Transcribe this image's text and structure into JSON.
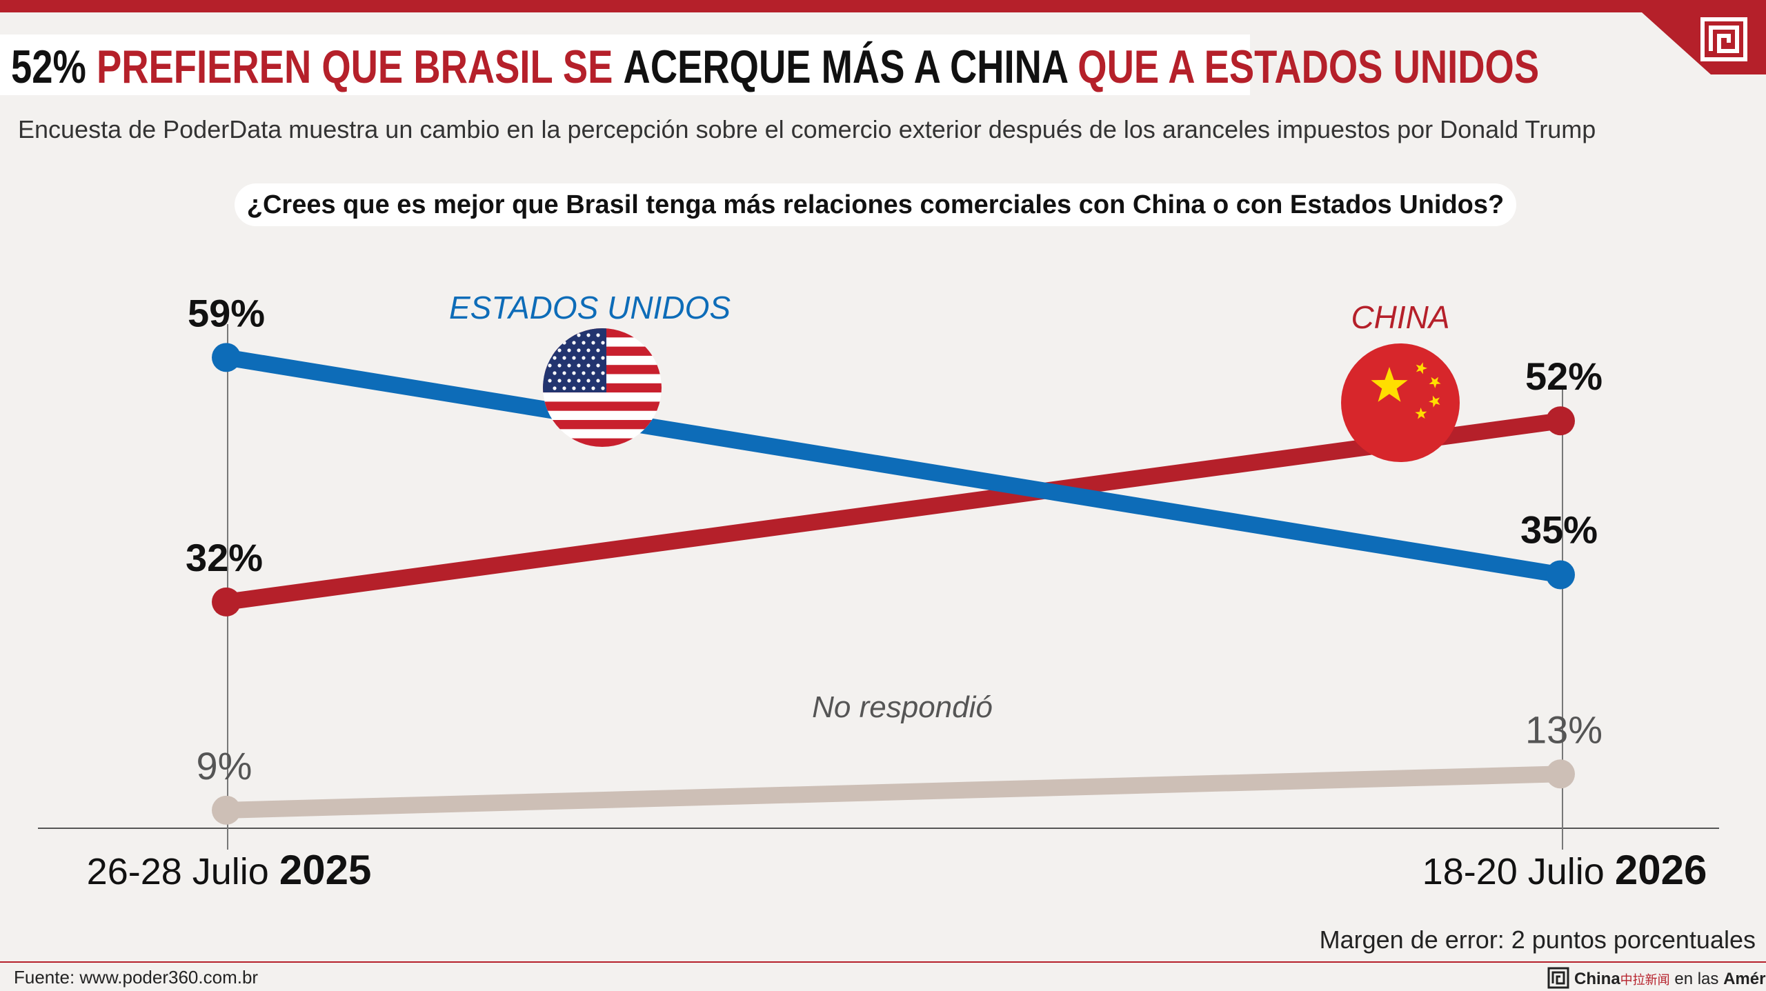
{
  "header": {
    "title_parts": [
      {
        "text": "52% ",
        "color": "#111111"
      },
      {
        "text": "PREFIEREN QUE BRASIL SE ",
        "color": "#b5202a"
      },
      {
        "text": "ACERQUE MÁS A CHINA ",
        "color": "#111111"
      },
      {
        "text": "QUE A ",
        "color": "#b5202a"
      },
      {
        "text": "ESTADOS UNIDOS",
        "color": "#b5202a"
      }
    ],
    "subtitle": "Encuesta de PoderData muestra un cambio en la percepción sobre el comercio exterior después de los aranceles impuestos por Donald Trump",
    "logo_icon": "maze-logo-icon"
  },
  "question": "¿Crees que es mejor que Brasil tenga más relaciones comerciales con China o con Estados Unidos?",
  "chart_data": {
    "type": "line",
    "categories": [
      {
        "prefix": "26-28 Julio ",
        "year": "2025"
      },
      {
        "prefix": "18-20 Julio ",
        "year": "2026"
      }
    ],
    "ylim": [
      0,
      70
    ],
    "grid": false,
    "series": [
      {
        "name": "ESTADOS UNIDOS",
        "key": "usa",
        "values": [
          59,
          35
        ],
        "labels": [
          "59%",
          "35%"
        ],
        "color": "#0d6cb8",
        "icon": "usa-flag-icon"
      },
      {
        "name": "CHINA",
        "key": "china",
        "values": [
          32,
          52
        ],
        "labels": [
          "32%",
          "52%"
        ],
        "color": "#b5202a",
        "icon": "china-flag-icon"
      },
      {
        "name": "No respondió",
        "key": "none",
        "values": [
          9,
          13
        ],
        "labels": [
          "9%",
          "13%"
        ],
        "color": "#cdbfb6"
      }
    ]
  },
  "footer": {
    "margin_note": "Margen de error: 2 puntos porcentuales",
    "source": "Fuente: www.poder360.com.br",
    "brand": {
      "china": "China",
      "cn_chars": "中拉新闻",
      "middle": " en las ",
      "americas": "Américas"
    }
  },
  "colors": {
    "red": "#b5202a",
    "blue": "#0d6cb8",
    "grey": "#cdbfb6",
    "background": "#f3f1ef"
  }
}
